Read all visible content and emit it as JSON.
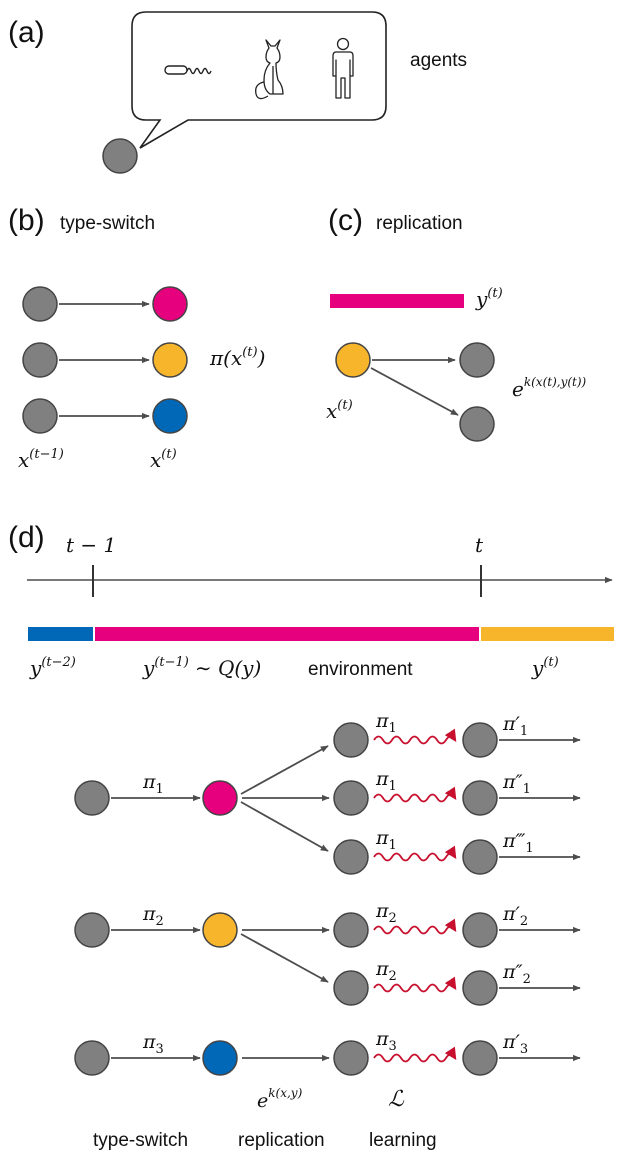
{
  "colors": {
    "agent": "#808080",
    "magenta": "#E6007E",
    "orange": "#F7B52C",
    "blue": "#0068B7",
    "wavy": "#C8102E",
    "arrow": "#4d4d4d"
  },
  "icons": [
    "worm-icon",
    "cat-icon",
    "human-icon"
  ],
  "panel_a": {
    "tag": "(a)",
    "label": "agents"
  },
  "panel_b": {
    "tag": "(b)",
    "title": "type-switch",
    "policy": "π(x",
    "policy_sup": "(t)",
    "policy_close": ")",
    "from_label": "x",
    "from_sup": "(t−1)",
    "to_label": "x",
    "to_sup": "(t)"
  },
  "panel_c": {
    "tag": "(c)",
    "title": "replication",
    "env": "y",
    "env_sup": "(t)",
    "agent": "x",
    "agent_sup": "(t)",
    "rate": "e",
    "rate_sup": "k(x(t),y(t))"
  },
  "panel_d": {
    "tag": "(d)",
    "t_prev": "t − 1",
    "t_now": "t",
    "env_prev2": "y",
    "env_prev2_sup": "(t−2)",
    "env_prev": "y",
    "env_prev_sup": "(t−1)",
    "env_dist": "∼ Q(y)",
    "env_label": "environment",
    "env_now": "y",
    "env_now_sup": "(t)",
    "switch_policies": [
      "π1",
      "π2",
      "π3"
    ],
    "learn_policies": [
      "π1",
      "π1",
      "π1",
      "π2",
      "π2",
      "π3"
    ],
    "new_policies": [
      "π′1",
      "π″1",
      "π‴1",
      "π′2",
      "π″2",
      "π′3"
    ],
    "rate": "e",
    "rate_sup": "k(x,y)",
    "loss": "ℒ",
    "stages": [
      "type-switch",
      "replication",
      "learning"
    ]
  }
}
